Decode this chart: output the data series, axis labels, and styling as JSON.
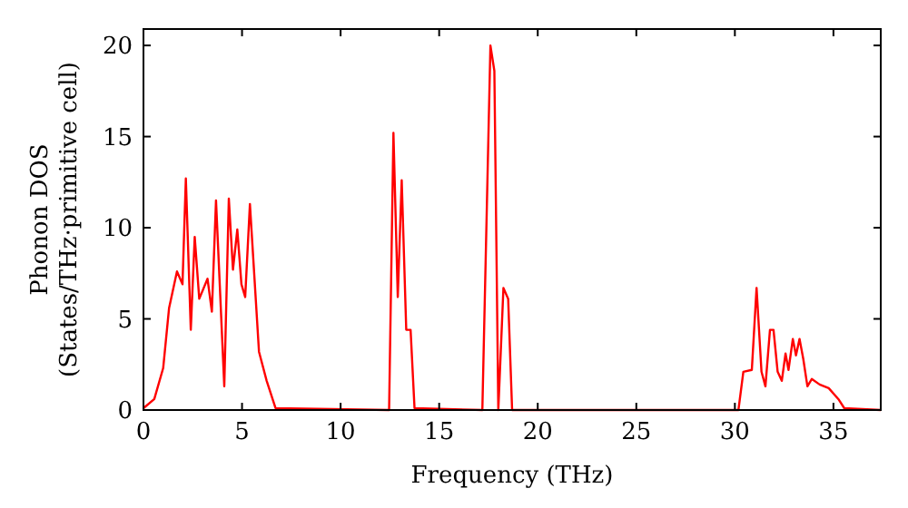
{
  "chart_data": {
    "type": "line",
    "xlabel": "Frequency (THz)",
    "ylabel": "Phonon DOS\n(States/THz·primitive cell)",
    "xlim": [
      0,
      37.4
    ],
    "ylim": [
      0,
      20.9
    ],
    "xticks": [
      0,
      5,
      10,
      15,
      20,
      25,
      30,
      35
    ],
    "yticks": [
      0,
      5,
      10,
      15,
      20
    ],
    "grid": false,
    "series": [
      {
        "color": "#ff0000",
        "x": [
          0,
          0.55,
          1.0,
          1.3,
          1.7,
          1.98,
          2.15,
          2.4,
          2.6,
          2.83,
          3.25,
          3.47,
          3.68,
          4.1,
          4.33,
          4.54,
          4.76,
          4.97,
          5.16,
          5.4,
          5.86,
          6.25,
          6.7,
          12.46,
          12.68,
          12.9,
          13.1,
          13.33,
          13.55,
          13.75,
          17.19,
          17.6,
          17.8,
          18.0,
          18.26,
          18.5,
          18.7,
          30.18,
          30.43,
          30.86,
          31.1,
          31.35,
          31.55,
          31.78,
          31.96,
          32.17,
          32.38,
          32.57,
          32.72,
          32.94,
          33.1,
          33.28,
          33.47,
          33.68,
          33.9,
          34.3,
          34.76,
          35.25,
          35.55,
          37.4
        ],
        "values": [
          0.1,
          0.6,
          2.3,
          5.6,
          7.6,
          6.9,
          12.7,
          4.4,
          9.5,
          6.1,
          7.2,
          5.4,
          11.5,
          1.3,
          11.6,
          7.7,
          9.9,
          6.9,
          6.2,
          11.3,
          3.2,
          1.6,
          0.1,
          0,
          15.2,
          6.2,
          12.6,
          4.4,
          4.4,
          0.1,
          0,
          20,
          18.6,
          0,
          6.7,
          6.1,
          0,
          0,
          2.1,
          2.2,
          6.7,
          2.1,
          1.3,
          4.4,
          4.4,
          2.1,
          1.6,
          3.1,
          2.2,
          3.9,
          3,
          3.9,
          2.8,
          1.3,
          1.7,
          1.4,
          1.2,
          0.6,
          0.1,
          0
        ]
      }
    ]
  }
}
